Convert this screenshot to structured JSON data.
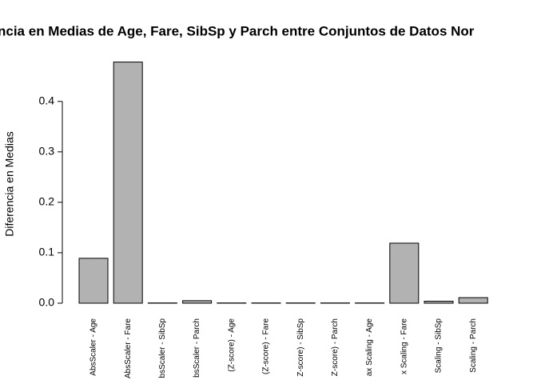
{
  "chart_data": {
    "type": "bar",
    "title": "ncia en Medias de Age, Fare, SibSp y Parch entre Conjuntos de Datos Nor",
    "y_label": "Diferencia en Medias",
    "categories": [
      "AbsScaler - Age",
      "AbsScaler - Fare",
      "bsScaler - SibSp",
      "bsScaler - Parch",
      "(Z-score) - Age",
      "(Z-score) - Fare",
      "Z-score) - SibSp",
      "Z-score) - Parch",
      "ax Scaling - Age",
      "x Scaling - Fare",
      "Scaling - SibSp",
      "Scaling - Parch"
    ],
    "values": [
      0.089,
      0.478,
      0.0005,
      0.005,
      0.0005,
      0.0005,
      0.0005,
      0.0005,
      0.0005,
      0.119,
      0.004,
      0.011
    ],
    "color": "#b2b2b2",
    "ylim": [
      0,
      0.49
    ],
    "yticks": [
      {
        "value": 0,
        "label": "0.0"
      },
      0.1,
      0.2,
      0.3,
      0.4
    ],
    "grid": false
  }
}
